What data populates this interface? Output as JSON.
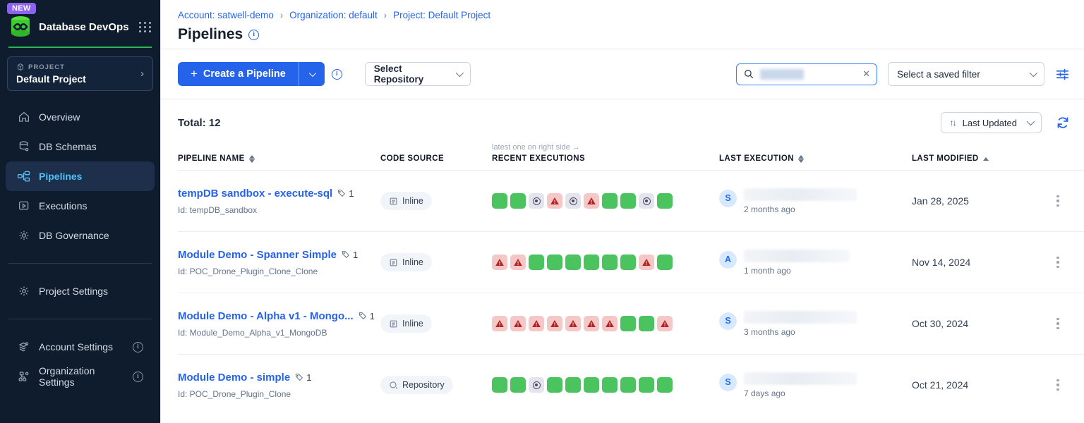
{
  "app": {
    "badge": "NEW",
    "title": "Database DevOps"
  },
  "sidebar": {
    "project_label": "PROJECT",
    "project_name": "Default Project",
    "nav": [
      {
        "label": "Overview"
      },
      {
        "label": "DB Schemas"
      },
      {
        "label": "Pipelines"
      },
      {
        "label": "Executions"
      },
      {
        "label": "DB Governance"
      }
    ],
    "project_settings": "Project Settings",
    "account_settings": "Account Settings",
    "organization_settings": "Organization Settings"
  },
  "breadcrumb": {
    "account": "Account: satwell-demo",
    "organization": "Organization: default",
    "project": "Project: Default Project"
  },
  "page": {
    "title": "Pipelines"
  },
  "toolbar": {
    "create_label": "Create a Pipeline",
    "select_repository": "Select Repository",
    "saved_filter": "Select a saved filter"
  },
  "list": {
    "total_label": "Total: 12",
    "sort_label": "Last Updated"
  },
  "table": {
    "headers": {
      "name": "PIPELINE NAME",
      "source": "CODE SOURCE",
      "executions_note": "latest one on right side →",
      "executions": "RECENT EXECUTIONS",
      "last_execution": "LAST EXECUTION",
      "last_modified": "LAST MODIFIED"
    },
    "rows": [
      {
        "name": "tempDB sandbox - execute-sql",
        "tag_count": "1",
        "id": "Id: tempDB_sandbox",
        "source": "Inline",
        "executions": [
          "success",
          "success",
          "canceled",
          "error",
          "canceled",
          "error",
          "success",
          "success",
          "canceled",
          "success"
        ],
        "avatar": "S",
        "last_execution_ago": "2 months ago",
        "last_modified": "Jan 28, 2025"
      },
      {
        "name": "Module Demo - Spanner Simple",
        "tag_count": "1",
        "id": "Id: POC_Drone_Plugin_Clone_Clone",
        "source": "Inline",
        "executions": [
          "error",
          "error",
          "success",
          "success",
          "success",
          "success",
          "success",
          "success",
          "error",
          "success"
        ],
        "avatar": "A",
        "last_execution_ago": "1 month ago",
        "last_modified": "Nov 14, 2024"
      },
      {
        "name": "Module Demo - Alpha v1 - Mongo...",
        "tag_count": "1",
        "id": "Id: Module_Demo_Alpha_v1_MongoDB",
        "source": "Inline",
        "executions": [
          "error",
          "error",
          "error",
          "error",
          "error",
          "error",
          "error",
          "success",
          "success",
          "error"
        ],
        "avatar": "S",
        "last_execution_ago": "3 months ago",
        "last_modified": "Oct 30, 2024"
      },
      {
        "name": "Module Demo - simple",
        "tag_count": "1",
        "id": "Id: POC_Drone_Plugin_Clone",
        "source": "Repository",
        "executions": [
          "success",
          "success",
          "canceled",
          "success",
          "success",
          "success",
          "success",
          "success",
          "success",
          "success"
        ],
        "avatar": "S",
        "last_execution_ago": "7 days ago",
        "last_modified": "Oct 21, 2024"
      }
    ]
  },
  "colors": {
    "sidebar_bg": "#0e1c2e",
    "active_nav_text": "#4cc2f7",
    "accent_blue": "#2563eb",
    "brand_green": "#2db457",
    "success_square": "#4bc45f",
    "error_square_bg": "#f5c8c8",
    "error_icon": "#b42323",
    "canceled_square_bg": "#e4e4ee",
    "new_badge": "#8b63ee"
  }
}
